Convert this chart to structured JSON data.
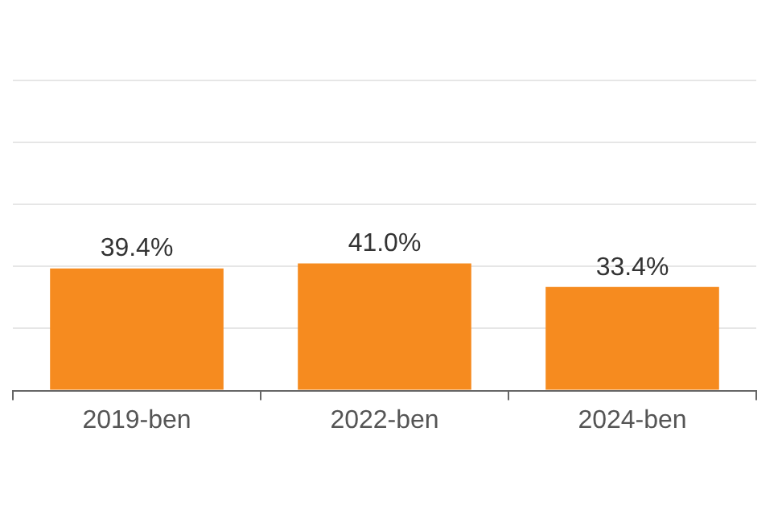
{
  "chart_data": {
    "type": "bar",
    "categories": [
      "2019-ben",
      "2022-ben",
      "2024-ben"
    ],
    "values": [
      39.4,
      41.0,
      33.4
    ],
    "color": "#f68b1f",
    "value_labels": [
      "39.4%",
      "41.0%",
      "33.4%"
    ],
    "ylim": [
      0,
      100
    ],
    "yticks": [
      {
        "value": 0,
        "label": null
      },
      {
        "value": 20,
        "label": null
      },
      {
        "value": 40,
        "label": null
      },
      {
        "value": 60,
        "label": null
      },
      {
        "value": 80,
        "label": null
      },
      {
        "value": 100,
        "label": null
      }
    ],
    "grid": "y",
    "legend": false
  }
}
